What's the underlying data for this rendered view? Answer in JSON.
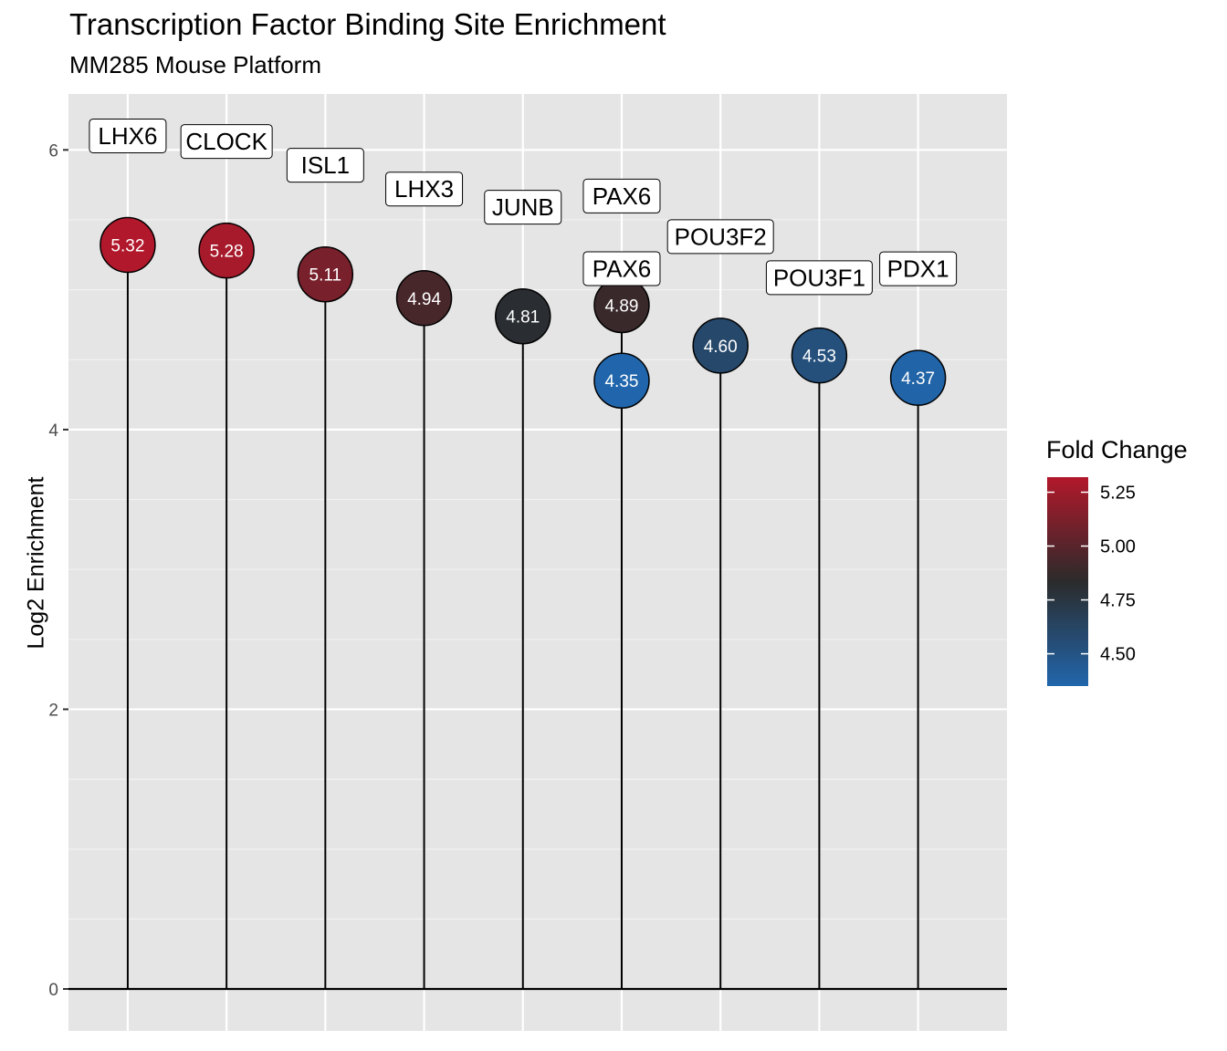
{
  "chart_data": {
    "type": "lollipop",
    "title": "Transcription Factor Binding Site Enrichment",
    "subtitle": "MM285 Mouse Platform",
    "xlabel": "",
    "ylabel": "Log2 Enrichment",
    "ylim": [
      -0.3,
      6.4
    ],
    "y_ticks": [
      0,
      2,
      4,
      6
    ],
    "grid": true,
    "legend": {
      "title": "Fold Change",
      "position": "right",
      "range": [
        4.35,
        5.32
      ],
      "ticks": [
        "5.25",
        "5.00",
        "4.75",
        "4.50"
      ],
      "colors": {
        "low": "#2166ac",
        "mid": "#2b2b2b",
        "high": "#b2182b"
      }
    },
    "points": [
      {
        "category": "LHX6",
        "label": "LHX6",
        "value": 5.32,
        "value_label": "5.32"
      },
      {
        "category": "CLOCK",
        "label": "CLOCK",
        "value": 5.28,
        "value_label": "5.28"
      },
      {
        "category": "ISL1",
        "label": "ISL1",
        "value": 5.11,
        "value_label": "5.11"
      },
      {
        "category": "LHX3",
        "label": "LHX3",
        "value": 4.94,
        "value_label": "4.94"
      },
      {
        "category": "JUNB",
        "label": "JUNB",
        "value": 4.81,
        "value_label": "4.81"
      },
      {
        "category": "PAX6",
        "label": "PAX6",
        "value": 4.89,
        "value_label": "4.89"
      },
      {
        "category": "PAX6",
        "label": "PAX6",
        "value": 4.35,
        "value_label": "4.35"
      },
      {
        "category": "POU3F2",
        "label": "POU3F2",
        "value": 4.6,
        "value_label": "4.60"
      },
      {
        "category": "POU3F1",
        "label": "POU3F1",
        "value": 4.53,
        "value_label": "4.53"
      },
      {
        "category": "PDX1",
        "label": "PDX1",
        "value": 4.37,
        "value_label": "4.37"
      }
    ]
  }
}
